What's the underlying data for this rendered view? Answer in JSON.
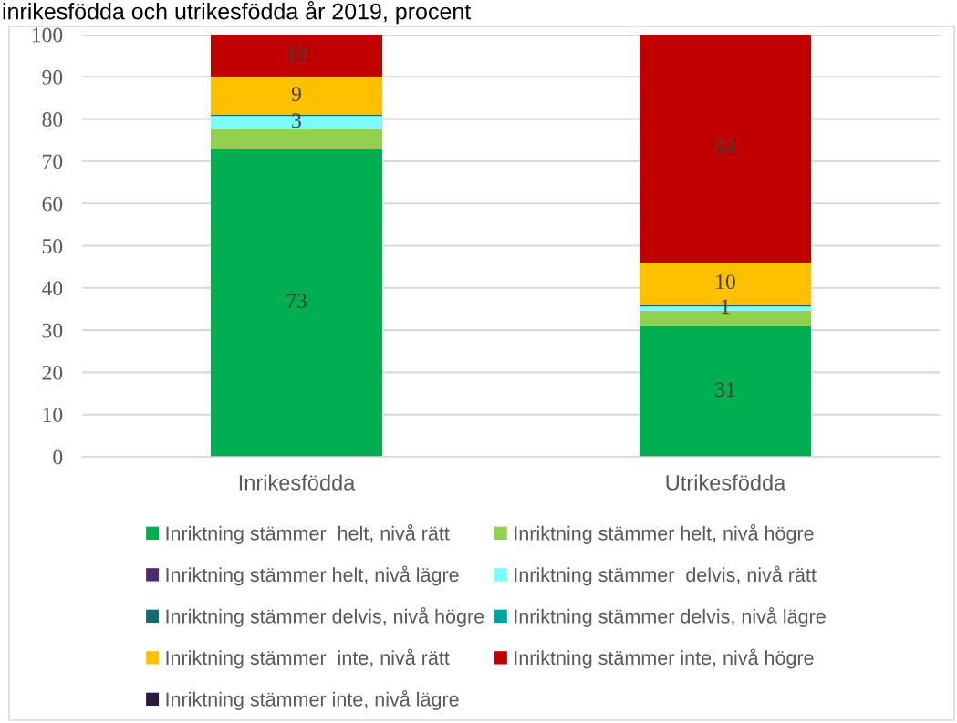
{
  "chart_data": {
    "type": "bar",
    "stacked": true,
    "title": "inrikesfödda och utrikesfödda år 2019, procent",
    "categories": [
      "Inrikesfödda",
      "Utrikesfödda"
    ],
    "series": [
      {
        "name": "Inriktning stämmer  helt, nivå rätt",
        "color": "#00b050",
        "values": [
          73,
          31
        ],
        "value_labels": [
          "73",
          "31"
        ]
      },
      {
        "name": "Inriktning stämmer helt, nivå högre",
        "color": "#92d050",
        "values": [
          4.7,
          3.6
        ]
      },
      {
        "name": "Inriktning stämmer helt, nivå lägre",
        "color": "#4f2a6e",
        "values": [
          0,
          0
        ]
      },
      {
        "name": "Inriktning stämmer  delvis, nivå rätt",
        "color": "#7afcfc",
        "values": [
          3,
          1
        ],
        "value_labels": [
          "3",
          "1"
        ]
      },
      {
        "name": "Inriktning stämmer delvis, nivå högre",
        "color": "#156b6b",
        "values": [
          0.3,
          0.4
        ]
      },
      {
        "name": "Inriktning stämmer delvis, nivå lägre",
        "color": "#00a2a2",
        "values": [
          0,
          0
        ]
      },
      {
        "name": "Inriktning stämmer  inte, nivå rätt",
        "color": "#ffc000",
        "values": [
          9,
          10
        ],
        "value_labels": [
          "9",
          "10"
        ]
      },
      {
        "name": "Inriktning stämmer inte, nivå högre",
        "color": "#c00000",
        "values": [
          10,
          54
        ],
        "value_labels": [
          "10",
          "54"
        ]
      },
      {
        "name": "Inriktning stämmer inte, nivå lägre",
        "color": "#2b1a3e",
        "values": [
          0,
          0
        ]
      }
    ],
    "ylim": [
      0,
      100
    ],
    "yticks": [
      0,
      10,
      20,
      30,
      40,
      50,
      60,
      70,
      80,
      90,
      100
    ],
    "grid": "y",
    "legend": "bottom"
  }
}
